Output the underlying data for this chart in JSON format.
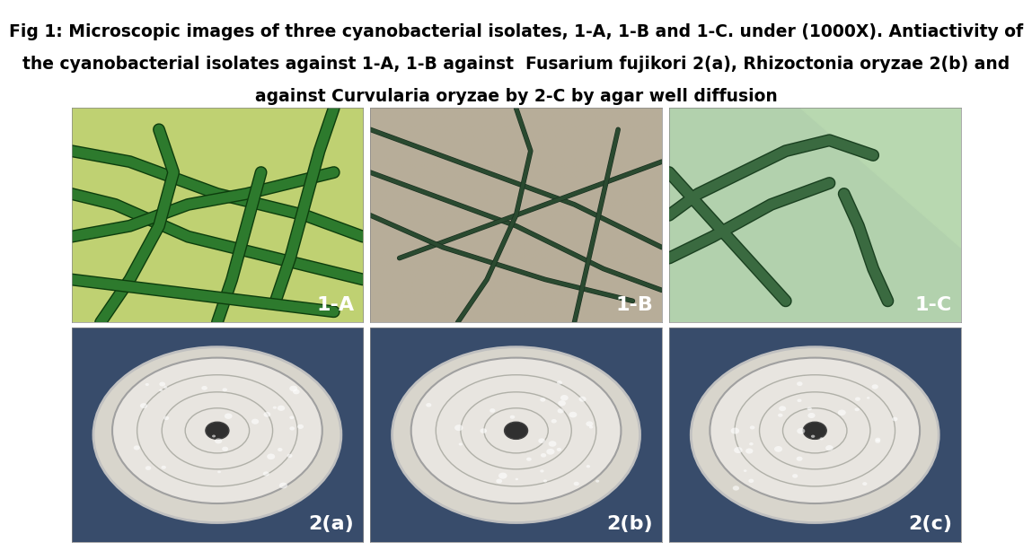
{
  "title_line1": "Fig 1: Microscopic images of three cyanobacterial isolates, 1-A, 1-B and 1-C. under (1000X). Antiactivity of",
  "title_line2": "the cyanobacterial isolates against 1-A, 1-B against  Fusarium fujikori 2(a), Rhizoctonia oryzae 2(b) and",
  "title_line3": "against Curvularia oryzae by 2-C by agar well diffusion",
  "italic_parts_line2": [
    "Fusarium fujikori",
    "Rhizoctonia oryzae"
  ],
  "italic_parts_line3": [
    "Curvularia oryzae"
  ],
  "labels_top": [
    "1-A",
    "1-B",
    "1-C"
  ],
  "labels_bottom": [
    "2(a)",
    "2(b)",
    "2(c)"
  ],
  "bg_color": "#ffffff",
  "label_color_top": "#ffffff",
  "label_color_bottom": "#ffffff",
  "title_fontsize": 13.5,
  "label_fontsize": 16,
  "image_bg_1A": "#7ab648",
  "image_bg_1B": "#b0a898",
  "image_bg_1C": "#a8c8a0",
  "image_bg_2a": "#3a5070",
  "image_bg_2b": "#3a5070",
  "image_bg_2c": "#3a5070"
}
